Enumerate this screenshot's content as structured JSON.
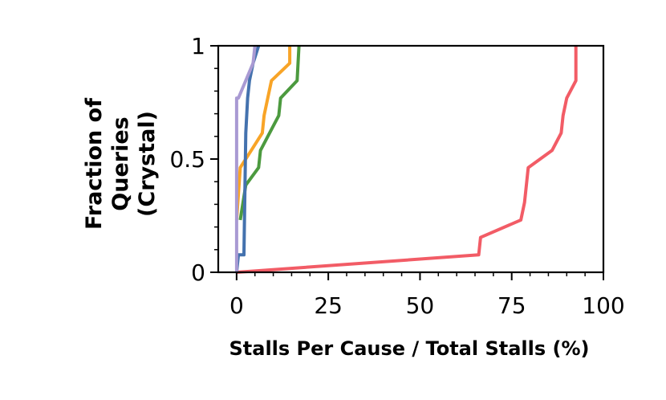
{
  "chart_data": {
    "type": "line",
    "xlabel": "Stalls Per Cause / Total Stalls (%)",
    "ylabel_lines": [
      "Fraction of",
      "Queries",
      "(Crystal)"
    ],
    "xlim": [
      -5,
      100
    ],
    "ylim": [
      0,
      1
    ],
    "xticks": [
      0,
      25,
      50,
      75,
      100
    ],
    "xtick_labels": [
      "0",
      "25",
      "50",
      "75",
      "100"
    ],
    "yticks": [
      0,
      0.5,
      1
    ],
    "ytick_labels": [
      "0",
      "0.5",
      "1"
    ],
    "grid": false,
    "series": [
      {
        "color": "#f25c66",
        "x": [
          0,
          66,
          66.5,
          77.5,
          78.5,
          79,
          79.5,
          86,
          88.5,
          89,
          90,
          92.5,
          92.5
        ],
        "y": [
          0,
          0.077,
          0.154,
          0.231,
          0.308,
          0.385,
          0.462,
          0.538,
          0.615,
          0.692,
          0.769,
          0.846,
          1.0
        ]
      },
      {
        "color": "#4c9a3f",
        "x": [
          1,
          2.5,
          6,
          6.5,
          9,
          11.5,
          12,
          16.5,
          17
        ],
        "y": [
          0.231,
          0.385,
          0.462,
          0.538,
          0.615,
          0.692,
          0.769,
          0.846,
          1.0
        ]
      },
      {
        "color": "#f8a427",
        "x": [
          0,
          1,
          4,
          7,
          7.5,
          8.5,
          9.5,
          14.5,
          14.5
        ],
        "y": [
          0.231,
          0.462,
          0.538,
          0.615,
          0.692,
          0.769,
          0.846,
          0.923,
          1.0
        ]
      },
      {
        "color": "#4472ae",
        "x": [
          0,
          0.5,
          2,
          2.5,
          3,
          3.5,
          4.5,
          6
        ],
        "y": [
          0,
          0.077,
          0.077,
          0.615,
          0.769,
          0.846,
          0.923,
          1.0
        ]
      },
      {
        "color": "#a99ad3",
        "x": [
          0,
          0,
          0,
          0.5,
          4.5,
          5
        ],
        "y": [
          0,
          0.154,
          0.769,
          0.769,
          0.923,
          1.0
        ]
      }
    ]
  }
}
